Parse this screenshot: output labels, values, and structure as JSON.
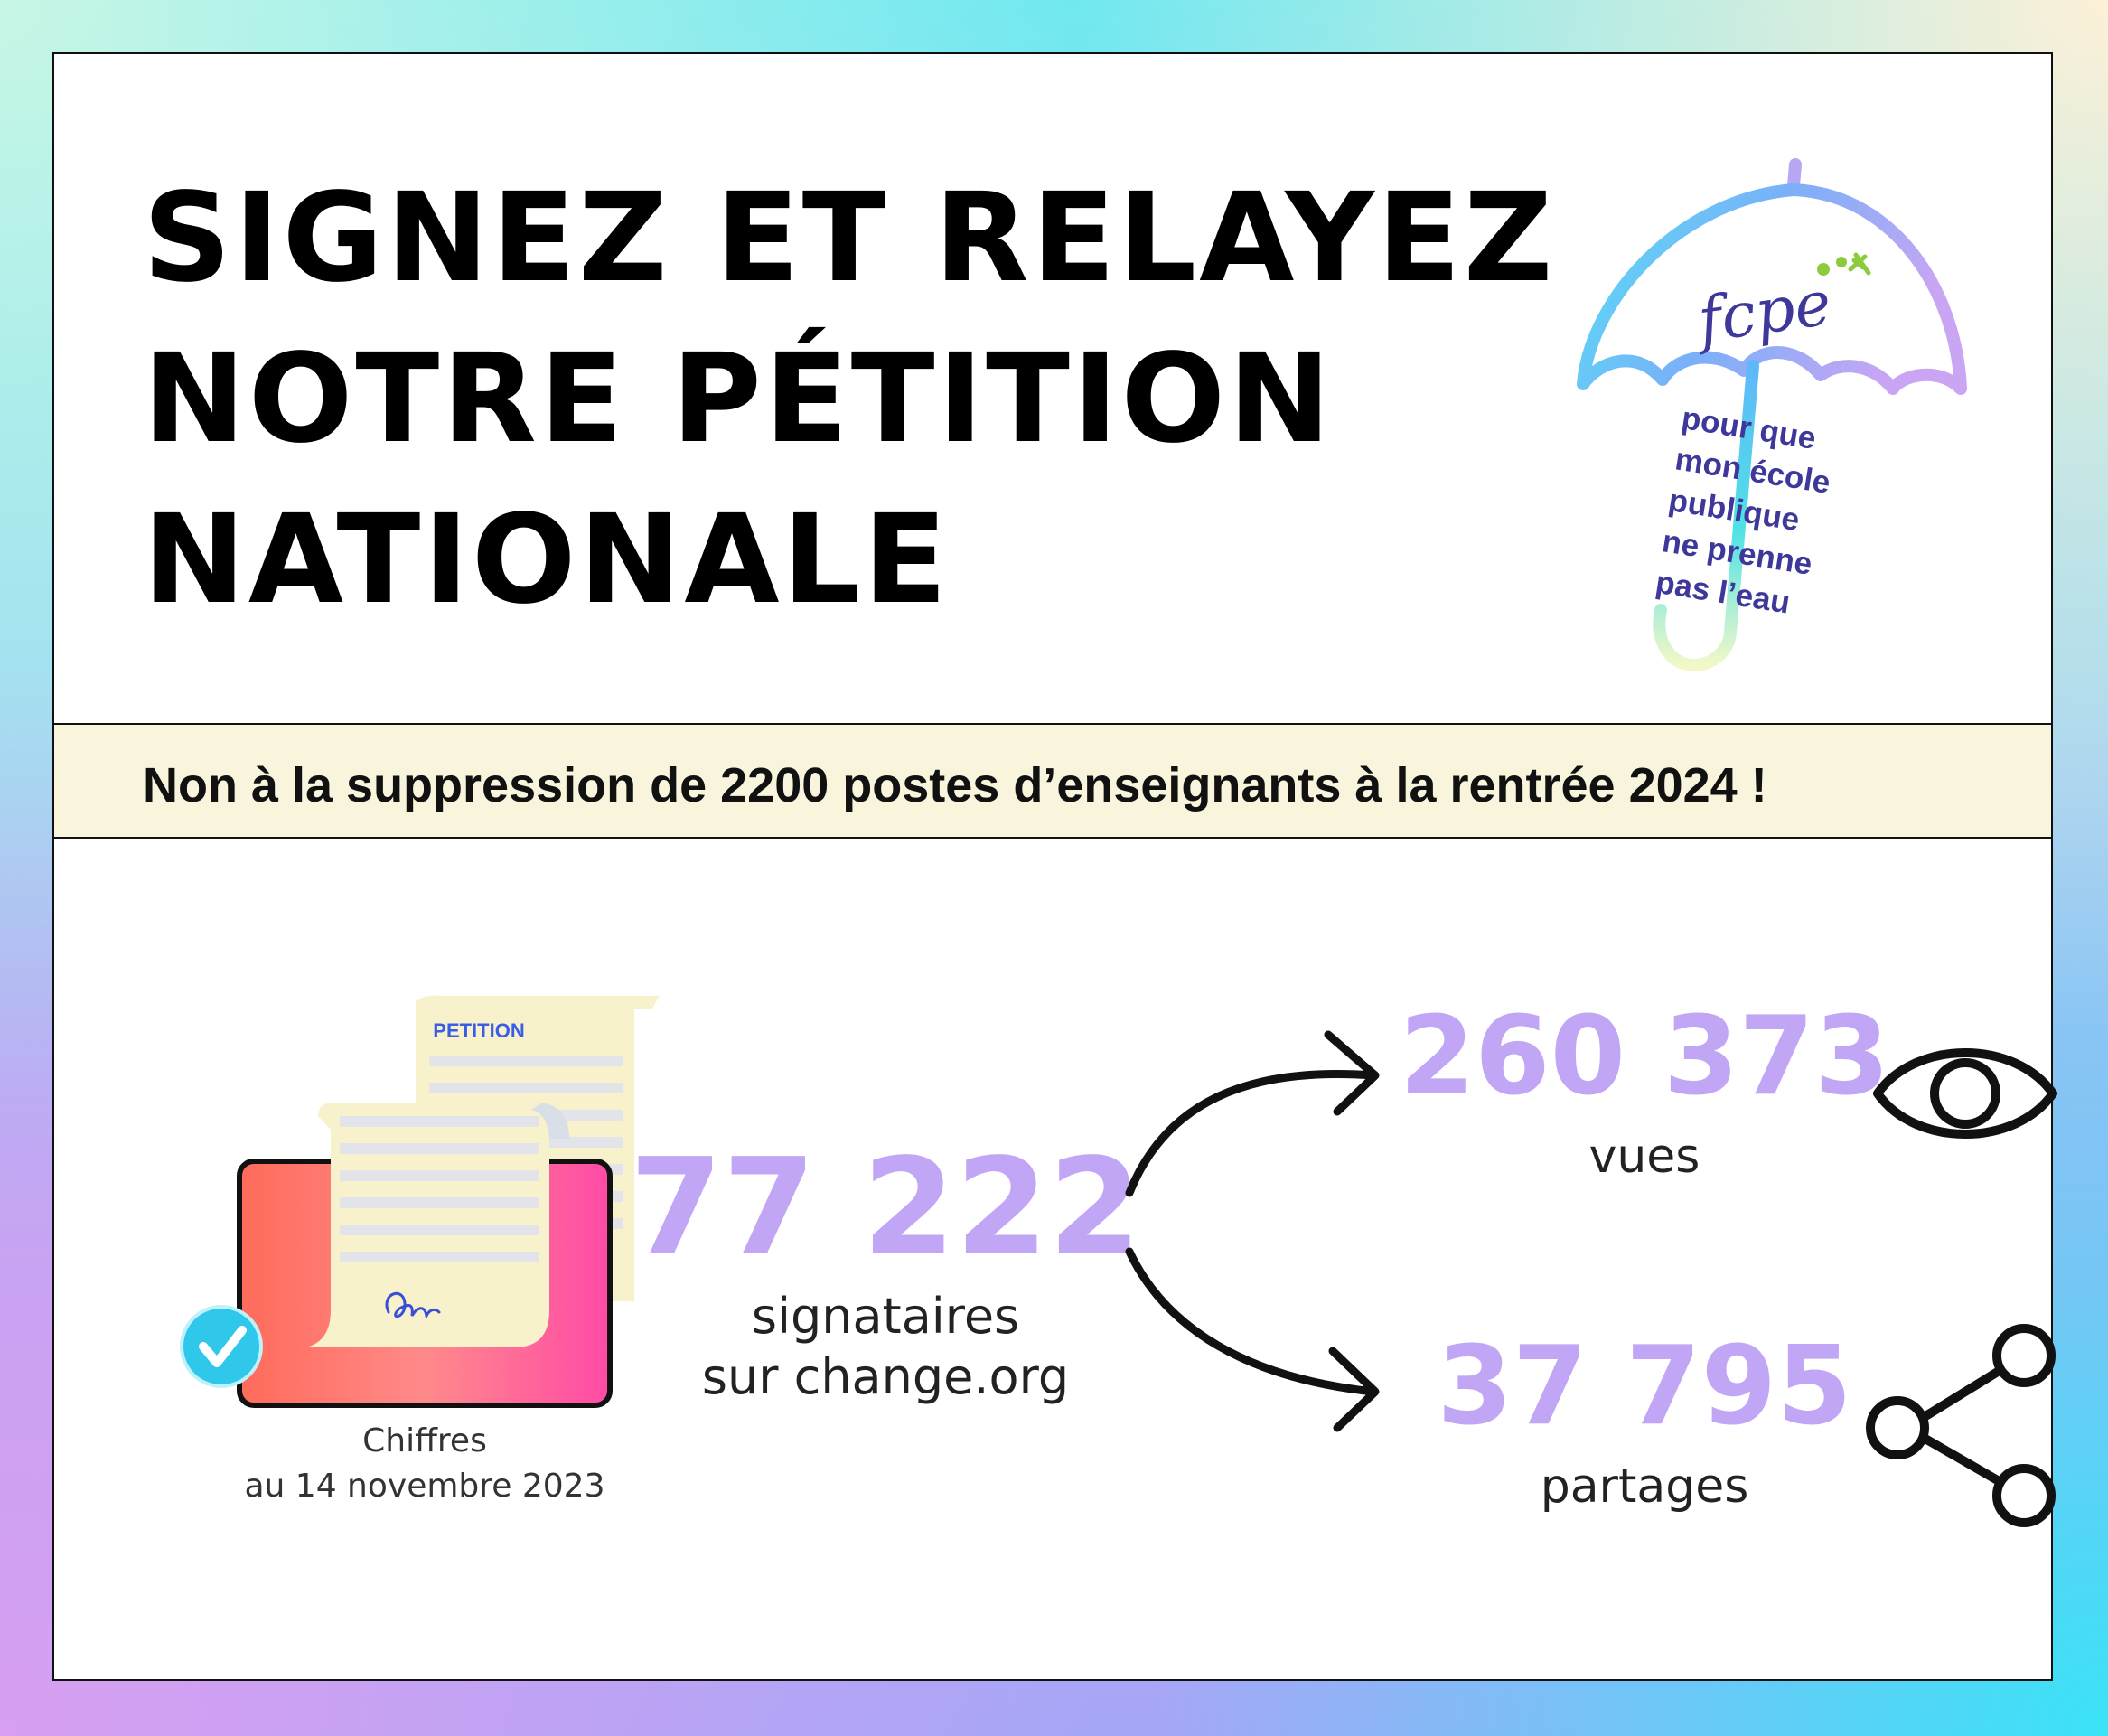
{
  "headline": {
    "line1": "SIGNEZ ET RELAYEZ",
    "line2": "NOTRE PÉTITION",
    "line3": "NATIONALE"
  },
  "logo": {
    "brand": "fcpe",
    "slogan_lines": [
      "pour que",
      "mon école",
      "publique",
      "ne prenne",
      "pas l’eau"
    ]
  },
  "banner": {
    "text": "Non à la suppression de 2200 postes d’enseignants à la rentrée 2024 !"
  },
  "illustration": {
    "document_title": "PETITION"
  },
  "date_caption": {
    "line1": "Chiffres",
    "line2": "au 14 novembre 2023"
  },
  "stats": {
    "signatures": {
      "value": "77 222",
      "label_line1": "signataires",
      "label_line2": "sur change.org"
    },
    "views": {
      "value": "260 373",
      "label": "vues",
      "icon": "eye-icon"
    },
    "shares": {
      "value": "37 795",
      "label": "partages",
      "icon": "share-icon"
    }
  },
  "colors": {
    "number": "#c2a6f6",
    "banner_bg": "#f8f5dc",
    "slogan": "#3d3899",
    "check": "#2fc7ea"
  }
}
